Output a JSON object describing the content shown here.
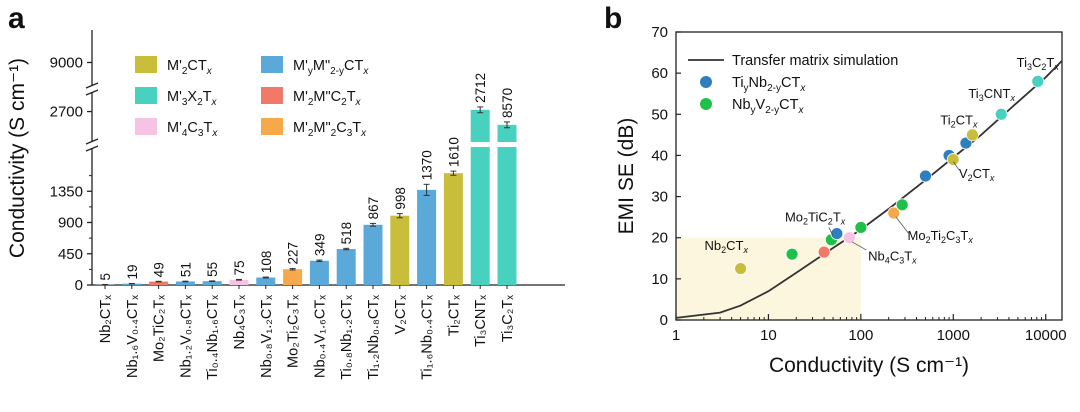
{
  "chart_data": [
    {
      "panel": "a",
      "type": "bar",
      "ylabel": "Conductivity (S cm⁻¹)",
      "y_axis_broken": true,
      "y_segments": [
        {
          "ylim": [
            0,
            1800
          ],
          "ticks": [
            0,
            450,
            900,
            1350
          ]
        },
        {
          "ylim": [
            2600,
            2780
          ],
          "ticks": [
            2700
          ]
        },
        {
          "ylim": [
            8900,
            9100
          ],
          "ticks": [
            9000
          ]
        }
      ],
      "categories": [
        "Nb₂CTₓ",
        "Nb₁.₆V₀.₄CTₓ",
        "Mo₂TiC₂Tₓ",
        "Nb₁.₂V₀.₈CTₓ",
        "Ti₀.₄Nb₁.₆CTₓ",
        "Nb₄C₃Tₓ",
        "Nb₀.₈V₁.₂CTₓ",
        "Mo₂Ti₂C₃Tₓ",
        "Nb₀.₄V₁.₆CTₓ",
        "Ti₀.₈Nb₁.₂CTₓ",
        "Ti₁.₂Nb₀.₈CTₓ",
        "V₂CTₓ",
        "Ti₁.₆Nb₀.₄CTₓ",
        "Ti₂CTₓ",
        "Ti₃CNTₓ",
        "Ti₃C₂Tₓ"
      ],
      "values": [
        5,
        19,
        49,
        51,
        55,
        75,
        108,
        227,
        349,
        518,
        867,
        998,
        1370,
        1610,
        2712,
        8570
      ],
      "value_labels": [
        "5",
        "19",
        "49",
        "51",
        "55",
        "75",
        "108",
        "227",
        "349",
        "518",
        "867",
        "998",
        "1370",
        "1610",
        "2712",
        "8570"
      ],
      "error": [
        3,
        3,
        4,
        4,
        4,
        5,
        6,
        10,
        10,
        10,
        20,
        30,
        80,
        30,
        20,
        20
      ],
      "groups": [
        "M'yM\"2-yCTx",
        "M'yM\"2-yCTx",
        "M'2M\"C2Tx",
        "M'yM\"2-yCTx",
        "M'yM\"2-yCTx",
        "M'4C3Tx",
        "M'yM\"2-yCTx",
        "M'2M\"2C3Tx",
        "M'yM\"2-yCTx",
        "M'yM\"2-yCTx",
        "M'yM\"2-yCTx",
        "M'2CTx",
        "M'yM\"2-yCTx",
        "M'2CTx",
        "M'3X2Tx",
        "M'3X2Tx"
      ],
      "legend": [
        {
          "key": "M'2CTx",
          "label_html": "M'<tspan font-size='10' dy='4'>2</tspan><tspan dy='-4'>CT</tspan><tspan font-size='10' dy='4' font-style='italic'>x</tspan>",
          "color": "#c9be3c"
        },
        {
          "key": "M'3X2Tx",
          "label_html": "M'<tspan font-size='10' dy='4'>3</tspan><tspan dy='-4'>X</tspan><tspan font-size='10' dy='4'>2</tspan><tspan dy='-4'>T</tspan><tspan font-size='10' dy='4' font-style='italic'>x</tspan>",
          "color": "#49d1bf"
        },
        {
          "key": "M'4C3Tx",
          "label_html": "M'<tspan font-size='10' dy='4'>4</tspan><tspan dy='-4'>C</tspan><tspan font-size='10' dy='4'>3</tspan><tspan dy='-4'>T</tspan><tspan font-size='10' dy='4' font-style='italic'>x</tspan>",
          "color": "#f7c3e4"
        },
        {
          "key": "M'yM\"2-yCTx",
          "label_html": "M'<tspan font-size='10' dy='4'>y</tspan><tspan dy='-4'>M\"</tspan><tspan font-size='10' dy='4'>2-y</tspan><tspan dy='-4'>CT</tspan><tspan font-size='10' dy='4' font-style='italic'>x</tspan>",
          "color": "#5aa9d8"
        },
        {
          "key": "M'2M\"C2Tx",
          "label_html": "M'<tspan font-size='10' dy='4'>2</tspan><tspan dy='-4'>M\"C</tspan><tspan font-size='10' dy='4'>2</tspan><tspan dy='-4'>T</tspan><tspan font-size='10' dy='4' font-style='italic'>x</tspan>",
          "color": "#f07a67"
        },
        {
          "key": "M'2M\"2C3Tx",
          "label_html": "M'<tspan font-size='10' dy='4'>2</tspan><tspan dy='-4'>M\"</tspan><tspan font-size='10' dy='4'>2</tspan><tspan dy='-4'>C</tspan><tspan font-size='10' dy='4'>3</tspan><tspan dy='-4'>T</tspan><tspan font-size='10' dy='4' font-style='italic'>x</tspan>",
          "color": "#f5a94a"
        }
      ]
    },
    {
      "panel": "b",
      "type": "scatter",
      "xlabel": "Conductivity (S cm⁻¹)",
      "ylabel": "EMI SE (dB)",
      "x_scale": "log",
      "xlim": [
        1,
        15000
      ],
      "ylim": [
        0,
        70
      ],
      "x_ticks": [
        "1",
        "10",
        "100",
        "1000",
        "10000"
      ],
      "y_ticks": [
        0,
        10,
        20,
        30,
        40,
        50,
        60,
        70
      ],
      "highlight_region": {
        "x": [
          1,
          100
        ],
        "y": [
          0,
          20
        ]
      },
      "line": {
        "name": "Transfer matrix simulation",
        "points": [
          [
            1,
            0.5
          ],
          [
            3,
            1.8
          ],
          [
            5,
            3.5
          ],
          [
            10,
            7
          ],
          [
            20,
            11.5
          ],
          [
            50,
            17.5
          ],
          [
            100,
            22
          ],
          [
            200,
            27
          ],
          [
            500,
            34
          ],
          [
            1000,
            39.5
          ],
          [
            2000,
            45
          ],
          [
            5000,
            53
          ],
          [
            10000,
            59
          ],
          [
            15000,
            63
          ]
        ]
      },
      "legend": [
        {
          "name": "Transfer matrix simulation",
          "marker": "line"
        },
        {
          "name_html": "Ti<tspan font-size='10' dy='4'>y</tspan><tspan dy='-4'>Nb</tspan><tspan font-size='10' dy='4'>2-y</tspan><tspan dy='-4'>CT</tspan><tspan font-size='10' dy='4' font-style='italic'>x</tspan>",
          "color": "#2f7fbf"
        },
        {
          "name_html": "Nb<tspan font-size='10' dy='4'>y</tspan><tspan dy='-4'>V</tspan><tspan font-size='10' dy='4'>2-y</tspan><tspan dy='-4'>CT</tspan><tspan font-size='10' dy='4' font-style='italic'>x</tspan>",
          "color": "#1fc04a"
        }
      ],
      "points": [
        {
          "x": 5,
          "y": 12.5,
          "color": "#c9be3c"
        },
        {
          "x": 18,
          "y": 16,
          "color": "#1fc04a"
        },
        {
          "x": 40,
          "y": 16.5,
          "color": "#f07a67"
        },
        {
          "x": 48,
          "y": 19.5,
          "color": "#1fc04a"
        },
        {
          "x": 55,
          "y": 21,
          "color": "#2f7fbf"
        },
        {
          "x": 75,
          "y": 20,
          "color": "#f7c3e4"
        },
        {
          "x": 100,
          "y": 22.5,
          "color": "#1fc04a"
        },
        {
          "x": 227,
          "y": 26,
          "color": "#f5a94a"
        },
        {
          "x": 280,
          "y": 28,
          "color": "#1fc04a"
        },
        {
          "x": 500,
          "y": 35,
          "color": "#2f7fbf"
        },
        {
          "x": 900,
          "y": 40,
          "color": "#2f7fbf"
        },
        {
          "x": 998,
          "y": 39,
          "color": "#c9be3c"
        },
        {
          "x": 1370,
          "y": 43,
          "color": "#2f7fbf"
        },
        {
          "x": 1610,
          "y": 45,
          "color": "#c9be3c"
        },
        {
          "x": 3300,
          "y": 50,
          "color": "#49d1bf"
        },
        {
          "x": 8200,
          "y": 58,
          "color": "#49d1bf"
        }
      ],
      "annotations": [
        {
          "html": "Ti<tspan font-size='9' dy='3'>3</tspan><tspan dy='-3'>C</tspan><tspan font-size='9' dy='3'>2</tspan><tspan dy='-3'>T</tspan><tspan font-size='9' dy='3' font-style='italic'>x</tspan>",
          "x": 8200,
          "y": 61.5,
          "anchor": "middle"
        },
        {
          "html": "Ti<tspan font-size='9' dy='3'>3</tspan><tspan dy='-3'>CNT</tspan><tspan font-size='9' dy='3' font-style='italic'>x</tspan>",
          "x": 2600,
          "y": 54,
          "anchor": "middle"
        },
        {
          "html": "Ti<tspan font-size='9' dy='3'>2</tspan><tspan dy='-3'>CT</tspan><tspan font-size='9' dy='3' font-style='italic'>x</tspan>",
          "x": 1150,
          "y": 47.5,
          "anchor": "middle"
        },
        {
          "html": "V<tspan font-size='9' dy='3'>2</tspan><tspan dy='-3'>CT</tspan><tspan font-size='9' dy='3' font-style='italic'>x</tspan>",
          "x": 1150,
          "y": 34.5,
          "anchor": "start"
        },
        {
          "html": "Mo<tspan font-size='9' dy='3'>2</tspan><tspan dy='-3'>Ti</tspan><tspan font-size='9' dy='3'>2</tspan><tspan dy='-3'>C</tspan><tspan font-size='9' dy='3'>3</tspan><tspan dy='-3'>T</tspan><tspan font-size='9' dy='3' font-style='italic'>x</tspan>",
          "x": 320,
          "y": 19.5,
          "anchor": "start"
        },
        {
          "html": "Mo<tspan font-size='9' dy='3'>2</tspan><tspan dy='-3'>TiC</tspan><tspan font-size='9' dy='3'>2</tspan><tspan dy='-3'>T</tspan><tspan font-size='9' dy='3' font-style='italic'>x</tspan>",
          "x": 32,
          "y": 24,
          "anchor": "middle"
        },
        {
          "html": "Nb<tspan font-size='9' dy='3'>4</tspan><tspan dy='-3'>C</tspan><tspan font-size='9' dy='3'>3</tspan><tspan dy='-3'>T</tspan><tspan font-size='9' dy='3' font-style='italic'>x</tspan>",
          "x": 120,
          "y": 14.5,
          "anchor": "start"
        },
        {
          "html": "Nb<tspan font-size='9' dy='3'>2</tspan><tspan dy='-3'>CT</tspan><tspan font-size='9' dy='3' font-style='italic'>x</tspan>",
          "x": 3.5,
          "y": 17,
          "anchor": "middle"
        }
      ]
    }
  ],
  "panel_labels": {
    "a": "a",
    "b": "b"
  }
}
